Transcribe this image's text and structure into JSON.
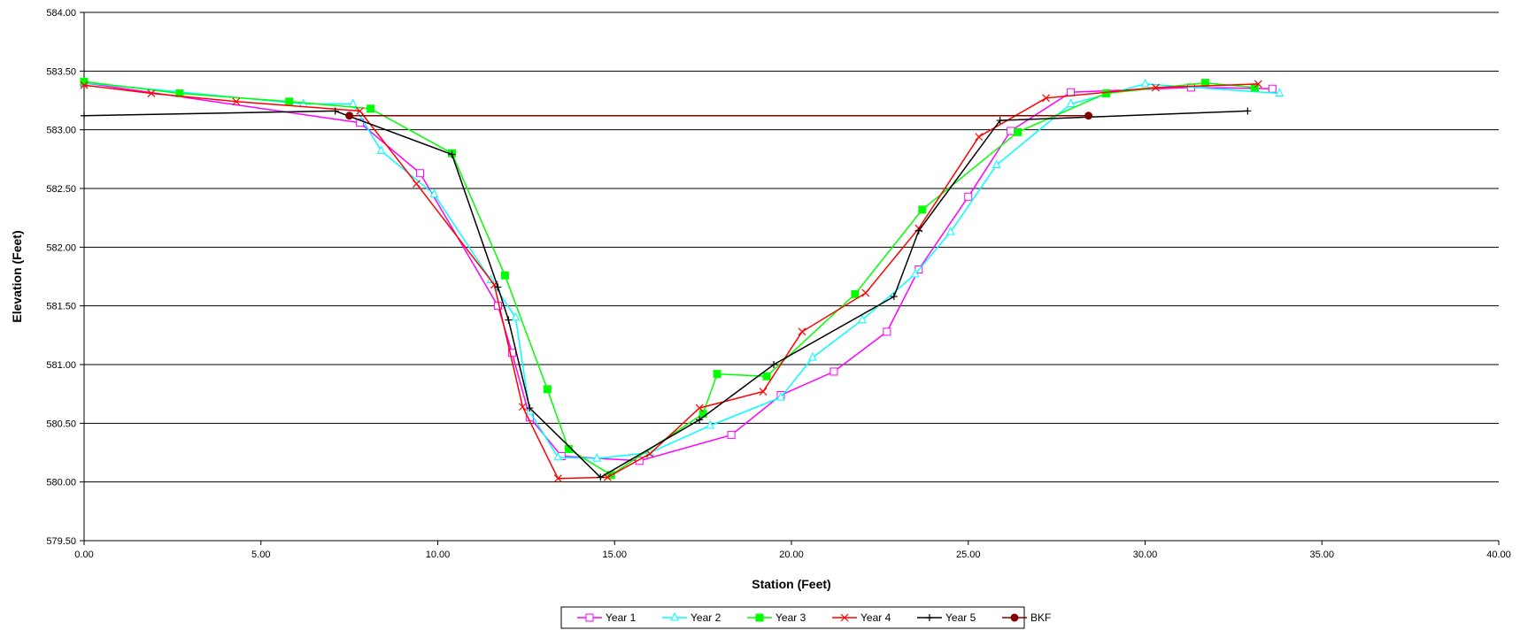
{
  "chart_data": {
    "type": "line",
    "xlabel": "Station (Feet)",
    "ylabel": "Elevation (Feet)",
    "xlim": [
      0,
      40
    ],
    "ylim": [
      579.5,
      584.0
    ],
    "x_ticks": [
      0,
      5,
      10,
      15,
      20,
      25,
      30,
      35,
      40
    ],
    "x_tick_labels": [
      "0.00",
      "5.00",
      "10.00",
      "15.00",
      "20.00",
      "25.00",
      "30.00",
      "35.00",
      "40.00"
    ],
    "y_ticks": [
      579.5,
      580.0,
      580.5,
      581.0,
      581.5,
      582.0,
      582.5,
      583.0,
      583.5,
      584.0
    ],
    "y_tick_labels": [
      "579.50",
      "580.00",
      "580.50",
      "581.00",
      "581.50",
      "582.00",
      "582.50",
      "583.00",
      "583.50",
      "584.00"
    ],
    "grid": "horizontal major gridlines",
    "legend_position": "bottom",
    "series": [
      {
        "name": "Year 1",
        "color": "#ff00ff",
        "marker": "square-open",
        "points": [
          [
            0.0,
            583.4
          ],
          [
            7.8,
            583.06
          ],
          [
            9.5,
            582.63
          ],
          [
            11.7,
            581.5
          ],
          [
            12.1,
            581.1
          ],
          [
            12.6,
            580.55
          ],
          [
            13.5,
            580.22
          ],
          [
            15.7,
            580.18
          ],
          [
            18.3,
            580.4
          ],
          [
            19.7,
            580.74
          ],
          [
            21.2,
            580.94
          ],
          [
            22.7,
            581.28
          ],
          [
            23.6,
            581.81
          ],
          [
            25.0,
            582.43
          ],
          [
            26.2,
            582.99
          ],
          [
            27.9,
            583.32
          ],
          [
            31.3,
            583.36
          ],
          [
            33.6,
            583.35
          ]
        ]
      },
      {
        "name": "Year 2",
        "color": "#00ffff",
        "marker": "triangle-open",
        "points": [
          [
            0.0,
            583.4
          ],
          [
            6.2,
            583.22
          ],
          [
            7.6,
            583.22
          ],
          [
            8.4,
            582.82
          ],
          [
            9.9,
            582.45
          ],
          [
            11.5,
            581.72
          ],
          [
            12.2,
            581.4
          ],
          [
            12.6,
            580.6
          ],
          [
            13.4,
            580.21
          ],
          [
            14.5,
            580.2
          ],
          [
            16.0,
            580.25
          ],
          [
            17.7,
            580.48
          ],
          [
            19.7,
            580.72
          ],
          [
            20.6,
            581.06
          ],
          [
            22.0,
            581.38
          ],
          [
            23.5,
            581.77
          ],
          [
            24.5,
            582.13
          ],
          [
            25.8,
            582.7
          ],
          [
            27.9,
            583.22
          ],
          [
            30.0,
            583.39
          ],
          [
            33.8,
            583.31
          ]
        ]
      },
      {
        "name": "Year 3",
        "color": "#00ff00",
        "marker": "square-filled",
        "points": [
          [
            0.0,
            583.41
          ],
          [
            2.7,
            583.31
          ],
          [
            5.8,
            583.24
          ],
          [
            8.1,
            583.18
          ],
          [
            10.4,
            582.8
          ],
          [
            11.9,
            581.76
          ],
          [
            13.1,
            580.79
          ],
          [
            13.7,
            580.28
          ],
          [
            14.9,
            580.06
          ],
          [
            17.5,
            580.58
          ],
          [
            17.9,
            580.92
          ],
          [
            19.3,
            580.9
          ],
          [
            21.8,
            581.6
          ],
          [
            23.7,
            582.32
          ],
          [
            26.4,
            582.98
          ],
          [
            28.9,
            583.31
          ],
          [
            31.7,
            583.4
          ],
          [
            33.1,
            583.36
          ]
        ]
      },
      {
        "name": "Year 4",
        "color": "#ff0000",
        "marker": "cross",
        "points": [
          [
            0.0,
            583.38
          ],
          [
            1.9,
            583.31
          ],
          [
            4.3,
            583.24
          ],
          [
            7.8,
            583.16
          ],
          [
            9.4,
            582.54
          ],
          [
            11.6,
            581.68
          ],
          [
            12.4,
            580.64
          ],
          [
            13.4,
            580.03
          ],
          [
            14.8,
            580.04
          ],
          [
            16.0,
            580.24
          ],
          [
            17.4,
            580.63
          ],
          [
            19.2,
            580.77
          ],
          [
            20.3,
            581.28
          ],
          [
            22.1,
            581.61
          ],
          [
            23.6,
            582.16
          ],
          [
            25.3,
            582.94
          ],
          [
            27.2,
            583.27
          ],
          [
            30.3,
            583.36
          ],
          [
            33.2,
            583.39
          ]
        ]
      },
      {
        "name": "Year 5",
        "color": "#000000",
        "marker": "plus",
        "points": [
          [
            0.0,
            583.12
          ],
          [
            7.1,
            583.16
          ],
          [
            10.4,
            582.79
          ],
          [
            11.7,
            581.66
          ],
          [
            12.0,
            581.38
          ],
          [
            12.6,
            580.63
          ],
          [
            14.6,
            580.04
          ],
          [
            17.4,
            580.53
          ],
          [
            19.5,
            581.0
          ],
          [
            22.9,
            581.58
          ],
          [
            23.6,
            582.14
          ],
          [
            25.9,
            583.08
          ],
          [
            32.9,
            583.16
          ]
        ]
      },
      {
        "name": "BKF",
        "color": "#800000",
        "marker": "circle-filled",
        "points": [
          [
            7.5,
            583.12
          ],
          [
            28.4,
            583.12
          ]
        ]
      }
    ]
  }
}
